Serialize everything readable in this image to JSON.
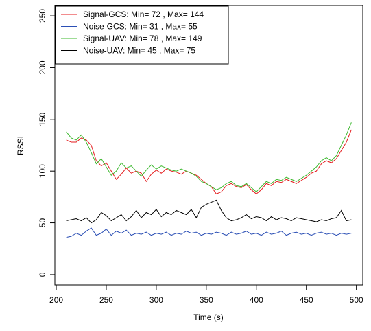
{
  "chart_data": {
    "type": "line",
    "x_label": "Time (s)",
    "y_label": "RSSI",
    "x": [
      210,
      215,
      220,
      225,
      230,
      235,
      240,
      245,
      250,
      255,
      260,
      265,
      270,
      275,
      280,
      285,
      290,
      295,
      300,
      305,
      310,
      315,
      320,
      325,
      330,
      335,
      340,
      345,
      350,
      355,
      360,
      365,
      370,
      375,
      380,
      385,
      390,
      395,
      400,
      405,
      410,
      415,
      420,
      425,
      430,
      435,
      440,
      445,
      450,
      455,
      460,
      465,
      470,
      475,
      480,
      485,
      490,
      495
    ],
    "series": [
      {
        "name": "Signal-GCS: Min= 72 , Max= 144",
        "color": "#e41a1c",
        "values": [
          130,
          128,
          128,
          132,
          130,
          125,
          110,
          105,
          108,
          100,
          92,
          97,
          103,
          98,
          100,
          98,
          90,
          97,
          101,
          98,
          102,
          100,
          99,
          97,
          100,
          98,
          96,
          92,
          88,
          85,
          78,
          80,
          86,
          88,
          85,
          84,
          87,
          82,
          78,
          82,
          88,
          86,
          90,
          89,
          92,
          90,
          88,
          91,
          94,
          98,
          100,
          107,
          110,
          108,
          112,
          120,
          128,
          140
        ]
      },
      {
        "name": "Noise-GCS: Min= 31 , Max= 55",
        "color": "#2b4fb5",
        "values": [
          36,
          37,
          40,
          38,
          42,
          45,
          38,
          40,
          44,
          38,
          42,
          40,
          43,
          38,
          40,
          39,
          41,
          38,
          40,
          39,
          41,
          38,
          40,
          39,
          42,
          40,
          41,
          38,
          40,
          39,
          41,
          40,
          38,
          41,
          39,
          40,
          42,
          39,
          40,
          38,
          41,
          39,
          40,
          42,
          38,
          40,
          41,
          39,
          40,
          38,
          40,
          41,
          39,
          40,
          38,
          40,
          39,
          40
        ]
      },
      {
        "name": "Signal-UAV: Min= 78 , Max= 149",
        "color": "#3cb82e",
        "values": [
          138,
          132,
          130,
          135,
          128,
          118,
          107,
          112,
          104,
          96,
          100,
          108,
          103,
          105,
          100,
          95,
          101,
          106,
          102,
          105,
          103,
          101,
          100,
          102,
          100,
          98,
          95,
          90,
          88,
          85,
          82,
          84,
          88,
          90,
          86,
          85,
          88,
          84,
          80,
          85,
          90,
          88,
          92,
          91,
          94,
          92,
          90,
          93,
          96,
          100,
          104,
          110,
          113,
          110,
          115,
          125,
          135,
          147
        ]
      },
      {
        "name": "Noise-UAV: Min= 45 , Max= 75",
        "color": "#000000",
        "values": [
          52,
          53,
          54,
          52,
          55,
          50,
          53,
          60,
          57,
          52,
          55,
          58,
          52,
          56,
          62,
          55,
          60,
          58,
          63,
          56,
          60,
          58,
          62,
          60,
          58,
          63,
          55,
          65,
          68,
          70,
          72,
          62,
          55,
          52,
          53,
          55,
          58,
          54,
          56,
          55,
          52,
          56,
          53,
          55,
          54,
          52,
          55,
          54,
          53,
          52,
          51,
          53,
          52,
          54,
          55,
          62,
          52,
          53
        ]
      }
    ],
    "xlim": [
      198.6,
      506.4
    ],
    "ylim": [
      -10,
      260
    ],
    "xticks": [
      200,
      250,
      300,
      350,
      400,
      450,
      500
    ],
    "yticks": [
      0,
      50,
      100,
      150,
      200,
      250
    ],
    "legend": "top-left"
  }
}
